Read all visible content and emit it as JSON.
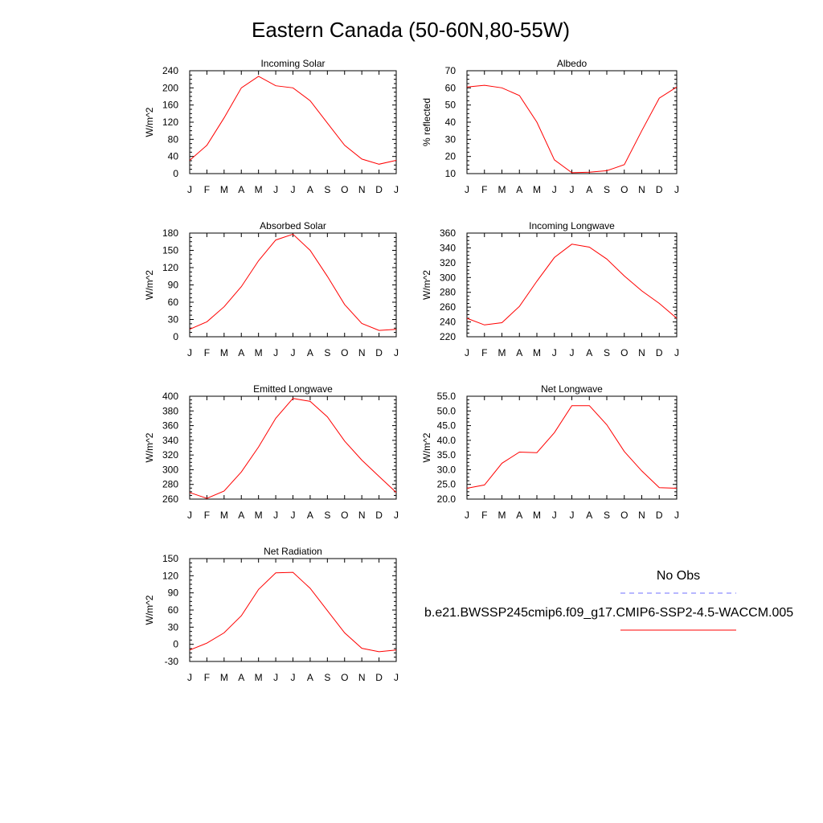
{
  "page": {
    "title": "Eastern Canada (50-60N,80-55W)"
  },
  "legend": {
    "obs_label": "No Obs",
    "model_label": "b.e21.BWSSP245cmip6.f09_g17.CMIP6-SSP2-4.5-WACCM.005",
    "obs_color": "#6f6fff",
    "model_color": "#ff0000"
  },
  "chart_data": [
    {
      "type": "line",
      "title": "Incoming Solar",
      "ylabel": "W/m^2",
      "categories": [
        "J",
        "F",
        "M",
        "A",
        "M",
        "J",
        "J",
        "A",
        "S",
        "O",
        "N",
        "D",
        "J"
      ],
      "ylim": [
        0,
        240
      ],
      "yticks": [
        "0",
        "40",
        "80",
        "120",
        "160",
        "200",
        "240"
      ],
      "series": [
        {
          "values": [
            31,
            66,
            130,
            200,
            227,
            205,
            200,
            170,
            118,
            66,
            34,
            22,
            31
          ]
        }
      ]
    },
    {
      "type": "line",
      "title": "Albedo",
      "ylabel": "% reflected",
      "categories": [
        "J",
        "F",
        "M",
        "A",
        "M",
        "J",
        "J",
        "A",
        "S",
        "O",
        "N",
        "D",
        "J"
      ],
      "ylim": [
        10,
        70
      ],
      "yticks": [
        "10",
        "20",
        "30",
        "40",
        "50",
        "60",
        "70"
      ],
      "series": [
        {
          "values": [
            60.5,
            61.5,
            60,
            55.5,
            40,
            18,
            10.5,
            10.8,
            11.7,
            15.2,
            35,
            54,
            60.5
          ]
        }
      ]
    },
    {
      "type": "line",
      "title": "Absorbed Solar",
      "ylabel": "W/m^2",
      "categories": [
        "J",
        "F",
        "M",
        "A",
        "M",
        "J",
        "J",
        "A",
        "S",
        "O",
        "N",
        "D",
        "J"
      ],
      "ylim": [
        0,
        180
      ],
      "yticks": [
        "0",
        "30",
        "60",
        "90",
        "120",
        "150",
        "180"
      ],
      "series": [
        {
          "values": [
            13,
            26,
            52,
            87,
            132,
            168,
            178,
            150,
            105,
            56,
            23,
            11,
            13
          ]
        }
      ]
    },
    {
      "type": "line",
      "title": "Incoming Longwave",
      "ylabel": "W/m^2",
      "categories": [
        "J",
        "F",
        "M",
        "A",
        "M",
        "J",
        "J",
        "A",
        "S",
        "O",
        "N",
        "D",
        "J"
      ],
      "ylim": [
        220,
        360
      ],
      "yticks": [
        "220",
        "240",
        "260",
        "280",
        "300",
        "320",
        "340",
        "360"
      ],
      "series": [
        {
          "values": [
            245,
            236,
            239,
            261,
            295,
            327,
            345,
            341,
            325,
            302,
            282,
            265,
            245
          ]
        }
      ]
    },
    {
      "type": "line",
      "title": "Emitted Longwave",
      "ylabel": "W/m^2",
      "categories": [
        "J",
        "F",
        "M",
        "A",
        "M",
        "J",
        "J",
        "A",
        "S",
        "O",
        "N",
        "D",
        "J"
      ],
      "ylim": [
        260,
        400
      ],
      "yticks": [
        "260",
        "280",
        "300",
        "320",
        "340",
        "360",
        "380",
        "400"
      ],
      "series": [
        {
          "values": [
            269,
            261,
            271,
            297,
            331,
            370,
            397,
            393,
            372,
            339,
            313,
            291,
            269
          ]
        }
      ]
    },
    {
      "type": "line",
      "title": "Net Longwave",
      "ylabel": "W/m^2",
      "categories": [
        "J",
        "F",
        "M",
        "A",
        "M",
        "J",
        "J",
        "A",
        "S",
        "O",
        "N",
        "D",
        "J"
      ],
      "ylim": [
        20,
        55
      ],
      "yticks": [
        "20.0",
        "25.0",
        "30.0",
        "35.0",
        "40.0",
        "45.0",
        "50.0",
        "55.0"
      ],
      "series": [
        {
          "values": [
            23.7,
            24.8,
            32.2,
            36,
            35.8,
            42.6,
            51.8,
            51.8,
            45.3,
            36.2,
            29.6,
            23.9,
            23.7
          ]
        }
      ]
    },
    {
      "type": "line",
      "title": "Net Radiation",
      "ylabel": "W/m^2",
      "categories": [
        "J",
        "F",
        "M",
        "A",
        "M",
        "J",
        "J",
        "A",
        "S",
        "O",
        "N",
        "D",
        "J"
      ],
      "ylim": [
        -30,
        150
      ],
      "yticks": [
        "-30",
        "0",
        "30",
        "60",
        "90",
        "120",
        "150"
      ],
      "series": [
        {
          "values": [
            -10,
            2,
            20,
            50,
            96,
            125,
            126,
            98,
            59,
            20,
            -7,
            -13,
            -10
          ]
        }
      ]
    }
  ]
}
